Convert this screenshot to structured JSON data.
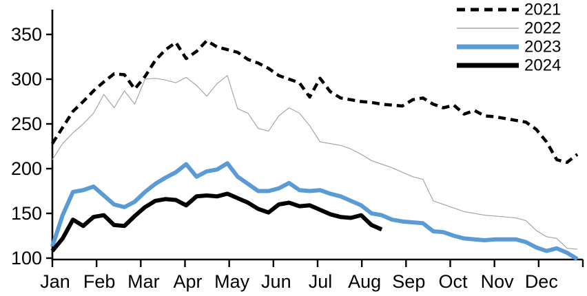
{
  "chart_data": {
    "type": "line",
    "title": "",
    "xlabel": "",
    "ylabel": "",
    "x_unit": "week-of-year",
    "months": [
      "Jan",
      "Feb",
      "Mar",
      "Apr",
      "May",
      "Jun",
      "Jul",
      "Aug",
      "Sep",
      "Oct",
      "Nov",
      "Dec"
    ],
    "yticks": [
      100,
      150,
      200,
      250,
      300,
      350
    ],
    "ylim": [
      95,
      375
    ],
    "grid": false,
    "legend_position": "top-right",
    "colors": {
      "black": "#000000",
      "gray": "#a6a6a6",
      "blue": "#5b9bd5"
    },
    "series": [
      {
        "name": "2021",
        "color": "#000000",
        "style": "dashed",
        "line_width": 4.5,
        "values": [
          228,
          246,
          264,
          275,
          287,
          297,
          306,
          305,
          289,
          303,
          321,
          333,
          341,
          323,
          331,
          343,
          336,
          333,
          330,
          322,
          318,
          312,
          304,
          300,
          296,
          280,
          301,
          286,
          279,
          277,
          275,
          274,
          272,
          271,
          270,
          277,
          279,
          272,
          268,
          271,
          261,
          265,
          259,
          258,
          256,
          254,
          252,
          244,
          230,
          210,
          207,
          216
        ]
      },
      {
        "name": "2022",
        "color": "#a6a6a6",
        "style": "solid",
        "line_width": 1.2,
        "values": [
          210,
          228,
          240,
          250,
          262,
          283,
          268,
          287,
          272,
          300,
          301,
          299,
          296,
          302,
          293,
          281,
          295,
          304,
          267,
          262,
          245,
          242,
          259,
          268,
          262,
          248,
          230,
          228,
          226,
          222,
          216,
          209,
          205,
          201,
          196,
          191,
          188,
          164,
          160,
          156,
          152,
          150,
          148,
          147,
          146,
          145,
          142,
          131,
          124,
          122,
          111,
          110
        ]
      },
      {
        "name": "2023",
        "color": "#5b9bd5",
        "style": "solid",
        "line_width": 6,
        "values": [
          113,
          148,
          174,
          176,
          180,
          170,
          160,
          157,
          163,
          174,
          183,
          190,
          196,
          205,
          191,
          197,
          199,
          206,
          191,
          183,
          175,
          175,
          178,
          184,
          176,
          175,
          176,
          172,
          169,
          164,
          159,
          150,
          148,
          143,
          141,
          140,
          139,
          130,
          129,
          125,
          122,
          121,
          120,
          121,
          121,
          121,
          118,
          112,
          108,
          111,
          106,
          99
        ]
      },
      {
        "name": "2024",
        "color": "#000000",
        "style": "solid",
        "line_width": 6,
        "values": [
          108,
          122,
          143,
          136,
          146,
          148,
          137,
          136,
          147,
          157,
          164,
          166,
          165,
          159,
          169,
          170,
          169,
          172,
          167,
          162,
          155,
          151,
          160,
          162,
          158,
          159,
          154,
          149,
          146,
          145,
          148,
          137,
          132
        ]
      }
    ]
  }
}
